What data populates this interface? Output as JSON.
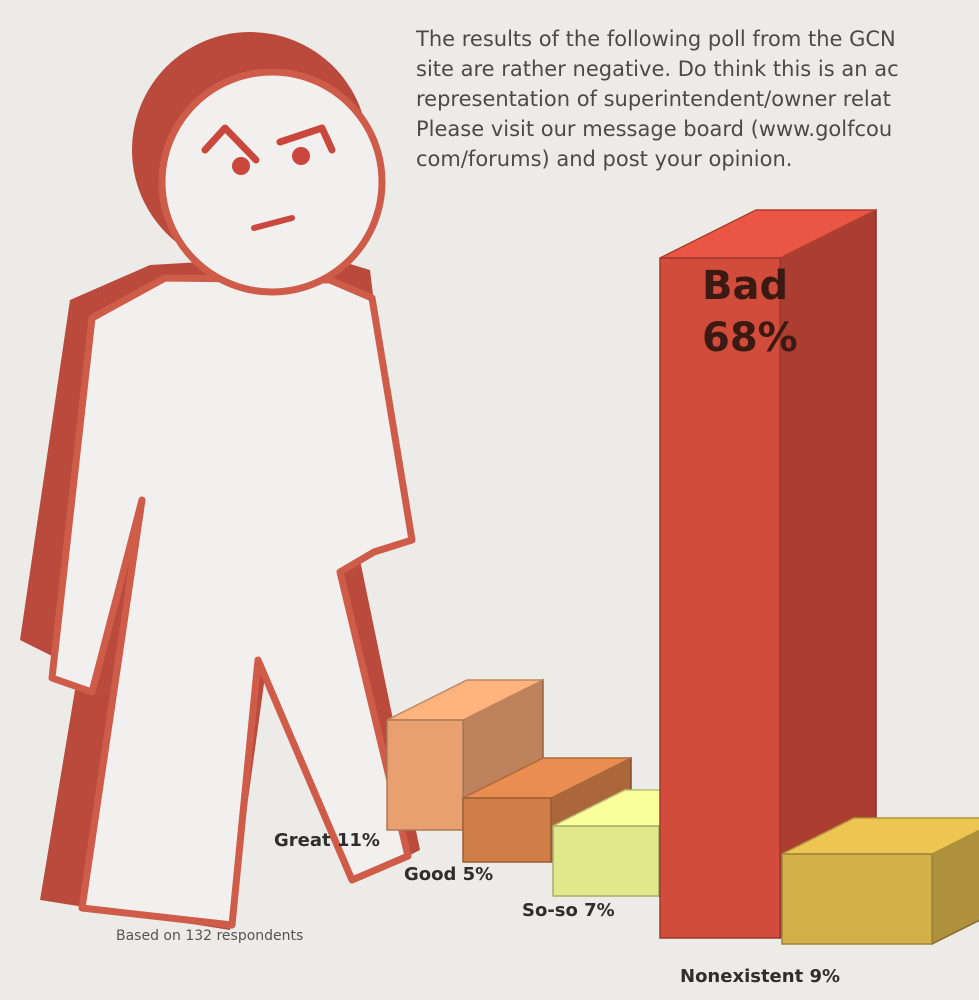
{
  "intro": {
    "line1": "The results of the following poll from the GCN",
    "line2": "site are rather negative. Do think this is an ac",
    "line3": "representation of superintendent/owner relat",
    "line4": "Please visit our message board (www.golfcou",
    "line5": "com/forums) and post your opinion."
  },
  "footnote": "Based on 132 respondents",
  "colors": {
    "figure": "#c85545",
    "figure_shadow": "#b94a3c",
    "face_features": "#c9473d"
  },
  "icons": [
    "angry-stick-figure"
  ],
  "chart_data": {
    "type": "bar",
    "categories": [
      "Great",
      "Good",
      "So-so",
      "Bad",
      "Nonexistent"
    ],
    "values": [
      11,
      5,
      7,
      68,
      9
    ],
    "unit": "%",
    "labels": [
      "Great 11%",
      "Good 5%",
      "So-so 7%",
      "Bad",
      "Nonexistent 9%"
    ],
    "bad_value_label": "68%",
    "colors": [
      "#e8a070",
      "#d07e47",
      "#dfe88a",
      "#d24c3c",
      "#d4b04a"
    ]
  }
}
